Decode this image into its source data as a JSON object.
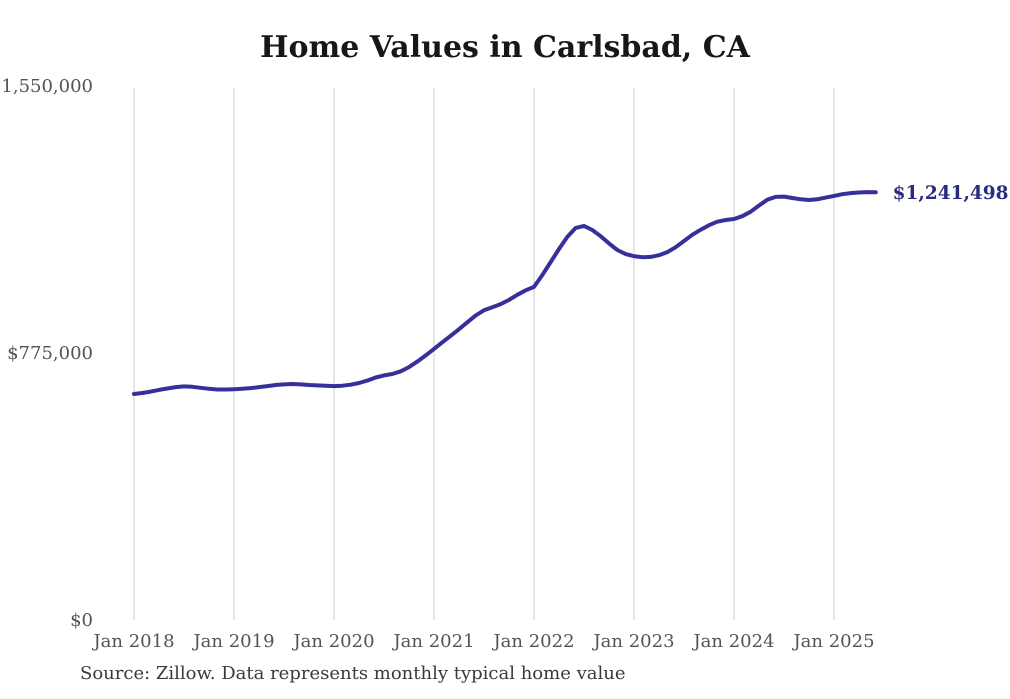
{
  "title": "Home Values in Carlsbad, CA",
  "source_note": "Source: Zillow. Data represents monthly typical home value",
  "end_label": "$1,241,498",
  "colors": {
    "line": "#37309a",
    "end_label": "#2b2a80",
    "grid": "#cccccc",
    "title_text": "#171717",
    "axis_text": "#545454",
    "source_text": "#3a3a3a",
    "background": "#ffffff"
  },
  "chart_data": {
    "type": "line",
    "title": "Home Values in Carlsbad, CA",
    "xlabel": "",
    "ylabel": "",
    "ylim": [
      0,
      1550000
    ],
    "grid": "vertical-only",
    "legend": "none",
    "y_ticks": [
      {
        "label": "$0",
        "value": 0
      },
      {
        "label": "$775,000",
        "value": 775000
      },
      {
        "label": "$1,550,000",
        "value": 1550000
      }
    ],
    "x_tick_labels": [
      "Jan 2018",
      "Jan 2019",
      "Jan 2020",
      "Jan 2021",
      "Jan 2022",
      "Jan 2023",
      "Jan 2024",
      "Jan 2025"
    ],
    "end_annotation": "$1,241,498",
    "series": [
      {
        "name": "Monthly typical home value",
        "x": [
          "2018-01",
          "2018-02",
          "2018-03",
          "2018-04",
          "2018-05",
          "2018-06",
          "2018-07",
          "2018-08",
          "2018-09",
          "2018-10",
          "2018-11",
          "2018-12",
          "2019-01",
          "2019-02",
          "2019-03",
          "2019-04",
          "2019-05",
          "2019-06",
          "2019-07",
          "2019-08",
          "2019-09",
          "2019-10",
          "2019-11",
          "2019-12",
          "2020-01",
          "2020-02",
          "2020-03",
          "2020-04",
          "2020-05",
          "2020-06",
          "2020-07",
          "2020-08",
          "2020-09",
          "2020-10",
          "2020-11",
          "2020-12",
          "2021-01",
          "2021-02",
          "2021-03",
          "2021-04",
          "2021-05",
          "2021-06",
          "2021-07",
          "2021-08",
          "2021-09",
          "2021-10",
          "2021-11",
          "2021-12",
          "2022-01",
          "2022-02",
          "2022-03",
          "2022-04",
          "2022-05",
          "2022-06",
          "2022-07",
          "2022-08",
          "2022-09",
          "2022-10",
          "2022-11",
          "2022-12",
          "2023-01",
          "2023-02",
          "2023-03",
          "2023-04",
          "2023-05",
          "2023-06",
          "2023-07",
          "2023-08",
          "2023-09",
          "2023-10",
          "2023-11",
          "2023-12",
          "2024-01",
          "2024-02",
          "2024-03",
          "2024-04",
          "2024-05",
          "2024-06",
          "2024-07",
          "2024-08",
          "2024-09",
          "2024-10",
          "2024-11",
          "2024-12",
          "2025-01",
          "2025-02",
          "2025-03",
          "2025-04",
          "2025-05",
          "2025-06"
        ],
        "values": [
          656000,
          659000,
          663000,
          668000,
          672000,
          676000,
          678000,
          677000,
          674000,
          671000,
          669000,
          669000,
          670000,
          671000,
          673000,
          676000,
          679000,
          682000,
          684000,
          685000,
          684000,
          682000,
          681000,
          680000,
          679000,
          680000,
          683000,
          688000,
          695000,
          704000,
          710000,
          714000,
          722000,
          734000,
          750000,
          768000,
          787000,
          806000,
          825000,
          844000,
          864000,
          884000,
          899000,
          908000,
          917000,
          929000,
          944000,
          957000,
          967000,
          1001000,
          1039000,
          1077000,
          1112000,
          1138000,
          1144000,
          1132000,
          1114000,
          1093000,
          1074000,
          1062000,
          1056000,
          1053000,
          1054000,
          1059000,
          1068000,
          1082000,
          1100000,
          1118000,
          1133000,
          1146000,
          1156000,
          1161000,
          1164000,
          1172000,
          1185000,
          1203000,
          1220000,
          1228000,
          1229000,
          1225000,
          1221000,
          1219000,
          1221000,
          1226000,
          1231000,
          1236000,
          1239000,
          1241000,
          1242000,
          1241498
        ]
      }
    ]
  }
}
